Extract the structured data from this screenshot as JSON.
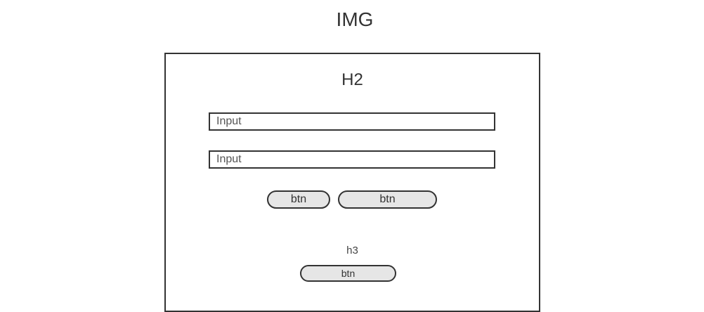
{
  "header": {
    "image_placeholder": "IMG"
  },
  "card": {
    "title": "H2",
    "inputs": [
      {
        "placeholder": "Input"
      },
      {
        "placeholder": "Input"
      }
    ],
    "buttons": [
      {
        "label": "btn"
      },
      {
        "label": "btn"
      }
    ],
    "subheading": "h3",
    "secondary_button": {
      "label": "btn"
    }
  },
  "colors": {
    "border": "#333333",
    "button_fill": "#e6e6e6",
    "background": "#ffffff"
  }
}
